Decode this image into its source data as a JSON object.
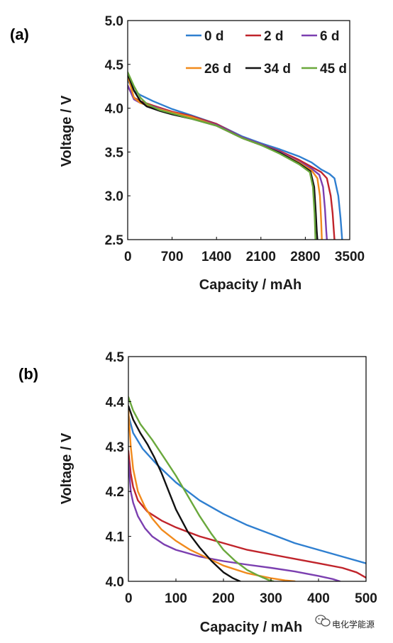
{
  "chart_data": [
    {
      "type": "line",
      "panel_label": "(a)",
      "xlabel": "Capacity / mAh",
      "ylabel": "Voltage / V",
      "xlim": [
        0,
        3500
      ],
      "ylim": [
        2.5,
        5.0
      ],
      "xticks": [
        "0",
        "700",
        "1400",
        "2100",
        "2800",
        "3500"
      ],
      "yticks": [
        "2.5",
        "3.0",
        "3.5",
        "4.0",
        "4.5",
        "5.0"
      ],
      "legend": "top-right",
      "grid": false,
      "series": [
        {
          "name": "0 d",
          "color": "#2f7fd0",
          "x": [
            0,
            100,
            200,
            400,
            700,
            1000,
            1400,
            1800,
            2100,
            2400,
            2700,
            2900,
            3050,
            3180,
            3260,
            3320,
            3355,
            3370,
            3380
          ],
          "y": [
            4.32,
            4.2,
            4.15,
            4.08,
            3.99,
            3.92,
            3.82,
            3.68,
            3.6,
            3.53,
            3.45,
            3.38,
            3.3,
            3.25,
            3.2,
            3.0,
            2.75,
            2.6,
            2.5
          ]
        },
        {
          "name": "2 d",
          "color": "#c0242b",
          "x": [
            0,
            100,
            200,
            400,
            700,
            1000,
            1400,
            1800,
            2100,
            2400,
            2700,
            2900,
            3050,
            3140,
            3200,
            3230,
            3250,
            3260
          ],
          "y": [
            4.25,
            4.12,
            4.08,
            4.03,
            3.96,
            3.91,
            3.82,
            3.67,
            3.59,
            3.51,
            3.41,
            3.33,
            3.27,
            3.2,
            3.0,
            2.8,
            2.6,
            2.5
          ]
        },
        {
          "name": "6 d",
          "color": "#7b3fb0",
          "x": [
            0,
            100,
            200,
            400,
            700,
            1000,
            1400,
            1800,
            2100,
            2400,
            2700,
            2900,
            3020,
            3080,
            3110,
            3130,
            3140
          ],
          "y": [
            4.26,
            4.1,
            4.06,
            4.02,
            3.95,
            3.9,
            3.81,
            3.67,
            3.59,
            3.5,
            3.39,
            3.31,
            3.24,
            3.1,
            2.85,
            2.6,
            2.5
          ]
        },
        {
          "name": "26 d",
          "color": "#f18a1c",
          "x": [
            0,
            100,
            200,
            400,
            700,
            1000,
            1400,
            1800,
            2100,
            2400,
            2700,
            2900,
            2990,
            3030,
            3050,
            3060
          ],
          "y": [
            4.37,
            4.12,
            4.06,
            4.01,
            3.95,
            3.9,
            3.8,
            3.66,
            3.58,
            3.49,
            3.38,
            3.29,
            3.2,
            3.0,
            2.7,
            2.5
          ]
        },
        {
          "name": "34 d",
          "color": "#111111",
          "x": [
            0,
            100,
            200,
            300,
            500,
            700,
            1000,
            1400,
            1800,
            2100,
            2400,
            2700,
            2880,
            2940,
            2965,
            2980,
            2990
          ],
          "y": [
            4.39,
            4.2,
            4.08,
            4.02,
            3.97,
            3.93,
            3.88,
            3.8,
            3.66,
            3.58,
            3.49,
            3.37,
            3.28,
            3.1,
            2.8,
            2.6,
            2.5
          ]
        },
        {
          "name": "45 d",
          "color": "#6aa83c",
          "x": [
            0,
            100,
            200,
            300,
            500,
            700,
            1000,
            1400,
            1800,
            2100,
            2400,
            2700,
            2870,
            2920,
            2945,
            2955,
            2960
          ],
          "y": [
            4.41,
            4.25,
            4.12,
            4.05,
            3.98,
            3.94,
            3.88,
            3.8,
            3.66,
            3.58,
            3.48,
            3.36,
            3.27,
            3.1,
            2.8,
            2.6,
            2.5
          ]
        }
      ]
    },
    {
      "type": "line",
      "panel_label": "(b)",
      "xlabel": "Capacity / mAh",
      "ylabel": "Voltage / V",
      "xlim": [
        0,
        500
      ],
      "ylim": [
        4.0,
        4.5
      ],
      "xticks": [
        "0",
        "100",
        "200",
        "300",
        "400",
        "500"
      ],
      "yticks": [
        "4.0",
        "4.1",
        "4.2",
        "4.3",
        "4.4",
        "4.5"
      ],
      "grid": false,
      "series": [
        {
          "name": "0 d",
          "color": "#2f7fd0",
          "x": [
            0,
            10,
            30,
            60,
            100,
            150,
            200,
            250,
            300,
            350,
            400,
            450,
            500
          ],
          "y": [
            4.37,
            4.33,
            4.295,
            4.26,
            4.22,
            4.18,
            4.15,
            4.125,
            4.105,
            4.085,
            4.07,
            4.055,
            4.04
          ]
        },
        {
          "name": "2 d",
          "color": "#c0242b",
          "x": [
            0,
            5,
            10,
            20,
            40,
            70,
            100,
            150,
            200,
            250,
            300,
            350,
            400,
            450,
            480,
            500
          ],
          "y": [
            4.29,
            4.24,
            4.21,
            4.18,
            4.155,
            4.135,
            4.12,
            4.1,
            4.085,
            4.07,
            4.06,
            4.05,
            4.04,
            4.03,
            4.02,
            4.008
          ]
        },
        {
          "name": "6 d",
          "color": "#7b3fb0",
          "x": [
            0,
            5,
            10,
            20,
            35,
            50,
            75,
            100,
            150,
            200,
            250,
            300,
            350,
            400,
            430,
            445
          ],
          "y": [
            4.27,
            4.2,
            4.175,
            4.145,
            4.118,
            4.1,
            4.082,
            4.07,
            4.055,
            4.045,
            4.037,
            4.03,
            4.022,
            4.012,
            4.005,
            4.0
          ]
        },
        {
          "name": "26 d",
          "color": "#f18a1c",
          "x": [
            0,
            5,
            10,
            20,
            35,
            50,
            70,
            100,
            130,
            160,
            200,
            250,
            300,
            330,
            350
          ],
          "y": [
            4.38,
            4.3,
            4.25,
            4.2,
            4.165,
            4.14,
            4.115,
            4.09,
            4.07,
            4.055,
            4.035,
            4.018,
            4.007,
            4.002,
            4.0
          ]
        },
        {
          "name": "34 d",
          "color": "#111111",
          "x": [
            0,
            10,
            25,
            40,
            55,
            70,
            85,
            100,
            125,
            150,
            175,
            200,
            220,
            235
          ],
          "y": [
            4.39,
            4.36,
            4.33,
            4.305,
            4.275,
            4.24,
            4.2,
            4.16,
            4.11,
            4.075,
            4.045,
            4.02,
            4.007,
            4.0
          ]
        },
        {
          "name": "45 d",
          "color": "#6aa83c",
          "x": [
            0,
            10,
            25,
            50,
            75,
            100,
            125,
            150,
            175,
            200,
            225,
            250,
            275,
            295,
            305
          ],
          "y": [
            4.41,
            4.38,
            4.35,
            4.315,
            4.275,
            4.235,
            4.19,
            4.145,
            4.105,
            4.07,
            4.045,
            4.025,
            4.012,
            4.003,
            4.0
          ]
        }
      ]
    }
  ],
  "watermark": {
    "icon": "wechat-icon",
    "text": "电化学能源"
  }
}
